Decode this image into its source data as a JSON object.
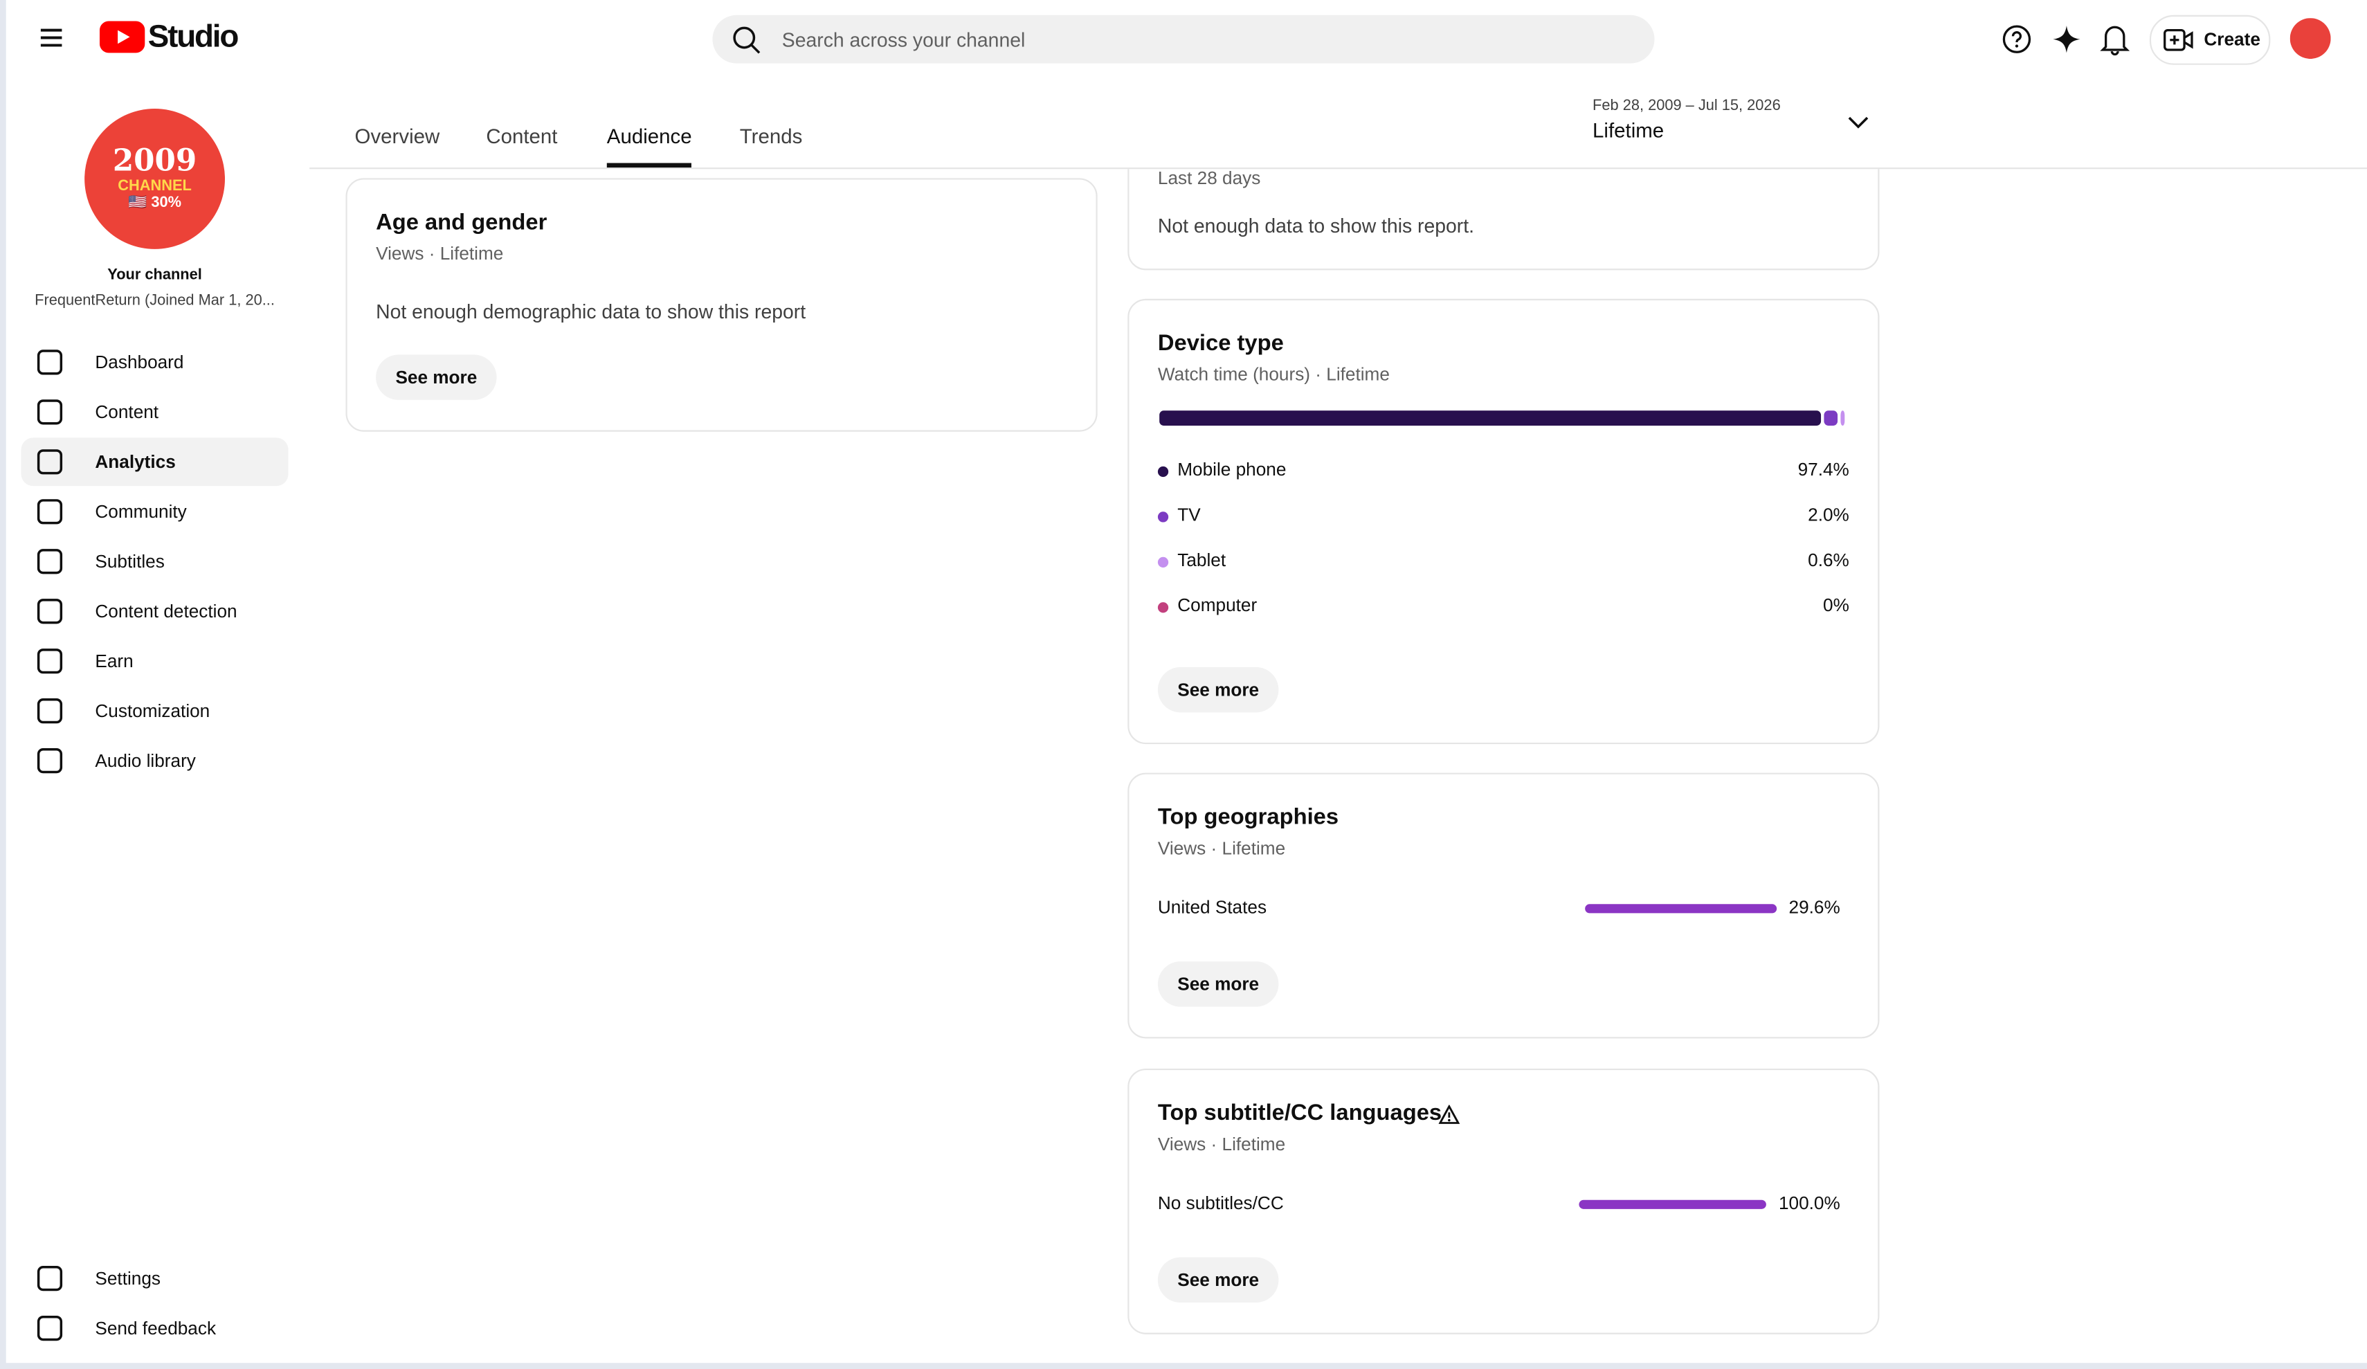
{
  "header": {
    "logo": "Studio",
    "search_placeholder": "Search across your channel",
    "create": "Create"
  },
  "channel": {
    "avatar_lines": [
      "2009",
      "CHANNEL",
      "🇺🇸 30%"
    ],
    "label": "Your channel",
    "name": "FrequentReturn (Joined Mar 1, 20..."
  },
  "nav": [
    "Dashboard",
    "Content",
    "Analytics",
    "Community",
    "Subtitles",
    "Content detection",
    "Earn",
    "Customization",
    "Audio library"
  ],
  "nav_active": 2,
  "nav_bottom": [
    "Settings",
    "Send feedback"
  ],
  "tabs": [
    "Overview",
    "Content",
    "Audience",
    "Trends"
  ],
  "tab_active": 2,
  "date_range": {
    "dates": "Feb 28, 2009 – Jul 15, 2026",
    "period": "Lifetime"
  },
  "cards": {
    "age_gender": {
      "title": "Age and gender",
      "subtitle": "Views · Lifetime",
      "message": "Not enough demographic data to show this report",
      "button": "See more"
    },
    "top_partial": {
      "subtitle": "Last 28 days",
      "message": "Not enough data to show this report."
    },
    "device": {
      "title": "Device type",
      "subtitle": "Watch time (hours) · Lifetime",
      "button": "See more",
      "items": [
        {
          "name": "Mobile phone",
          "share": 97.4,
          "label": "97.4%",
          "color": "#28104e"
        },
        {
          "name": "TV",
          "share": 2.0,
          "label": "2.0%",
          "color": "#7c3bc2"
        },
        {
          "name": "Tablet",
          "share": 0.6,
          "label": "0.6%",
          "color": "#c490ef"
        },
        {
          "name": "Computer",
          "share": 0,
          "label": "0%",
          "color": "#c2407e"
        }
      ]
    },
    "geographies": {
      "title": "Top geographies",
      "subtitle": "Views · Lifetime",
      "button": "See more",
      "items": [
        {
          "name": "United States",
          "share": 29.6,
          "label": "29.6%"
        }
      ]
    },
    "subtitles": {
      "title": "Top subtitle/CC languages",
      "subtitle": "Views · Lifetime",
      "button": "See more",
      "items": [
        {
          "name": "No subtitles/CC",
          "share": 100.0,
          "label": "100.0%"
        }
      ]
    }
  }
}
